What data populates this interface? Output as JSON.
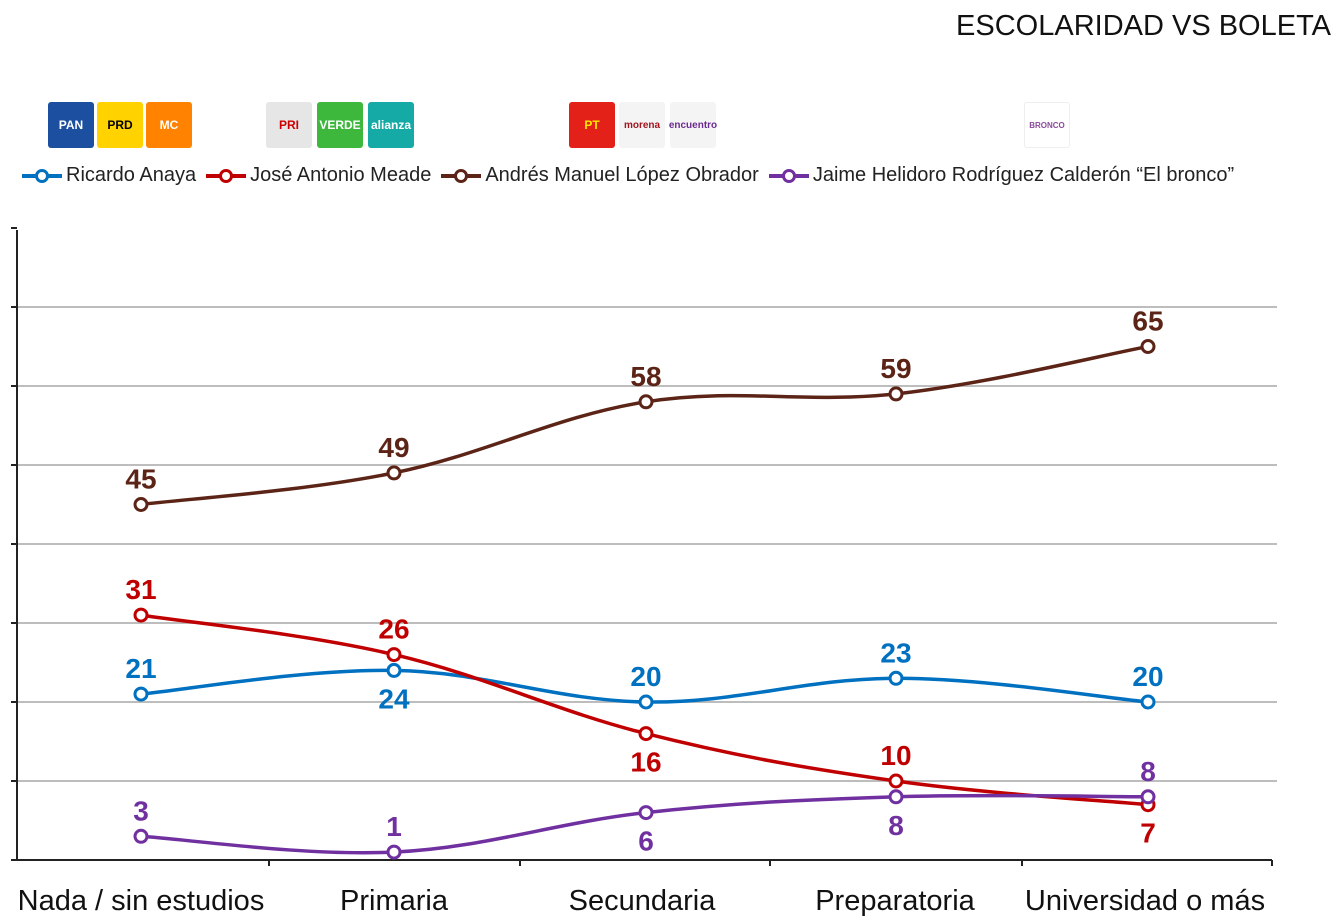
{
  "chart_data": {
    "type": "line",
    "title": "ESCOLARIDAD VS BOLETA",
    "categories": [
      "Nada / sin estudios",
      "Primaria",
      "Secundaria",
      "Preparatoria",
      "Universidad o más"
    ],
    "ylim": [
      0,
      80
    ],
    "grid": true,
    "legend_position": "top",
    "series": [
      {
        "name": "Ricardo Anaya",
        "color": "#0070c0",
        "values": [
          21,
          24,
          20,
          23,
          20
        ]
      },
      {
        "name": "José Antonio Meade",
        "color": "#c00000",
        "values": [
          31,
          26,
          16,
          10,
          7
        ]
      },
      {
        "name": "Andrés Manuel López Obrador",
        "color": "#5c2416",
        "values": [
          45,
          49,
          58,
          59,
          65
        ]
      },
      {
        "name": "Jaime Helidoro Rodríguez Calderón “El bronco”",
        "color": "#7030a0",
        "values": [
          3,
          1,
          6,
          8,
          8
        ]
      }
    ]
  },
  "logos": [
    {
      "text": "PAN",
      "bg": "#1c4fa0",
      "fg": "#fff"
    },
    {
      "text": "PRD",
      "bg": "#ffd200",
      "fg": "#000"
    },
    {
      "text": "MC",
      "bg": "#ff8300",
      "fg": "#fff"
    },
    {
      "text": "PRI",
      "bg": "#e6e6e6",
      "fg": "#c00"
    },
    {
      "text": "VERDE",
      "bg": "#3db83d",
      "fg": "#fff"
    },
    {
      "text": "alianza",
      "bg": "#16aaa6",
      "fg": "#fff"
    },
    {
      "text": "PT",
      "bg": "#e32119",
      "fg": "#ffe600"
    },
    {
      "text": "morena",
      "bg": "#f4f4f4",
      "fg": "#a0151f"
    },
    {
      "text": "encuentro",
      "bg": "#f4f4f4",
      "fg": "#6b2c91"
    },
    {
      "text": "BRONCO",
      "bg": "#fff",
      "fg": "#8a4a9a"
    }
  ]
}
